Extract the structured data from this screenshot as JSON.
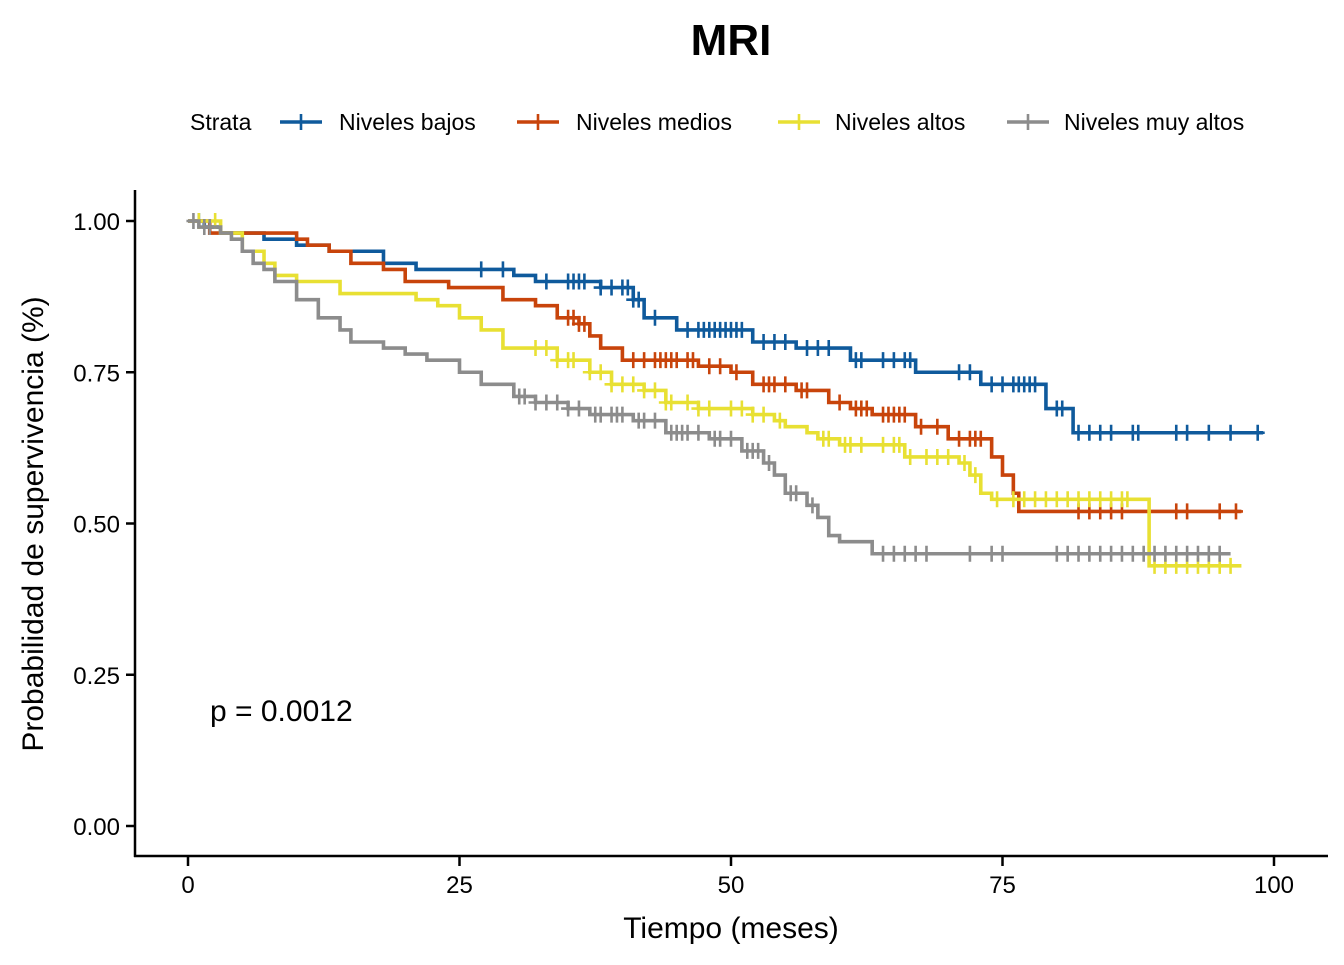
{
  "chart_data": {
    "type": "line",
    "subtype": "kaplan-meier",
    "title": "MRI",
    "xlabel": "Tiempo (meses)",
    "ylabel": "Probabilidad de supervivencia (%)",
    "xlim": [
      -5,
      105
    ],
    "ylim": [
      -0.05,
      1.05
    ],
    "x_ticks": [
      0,
      25,
      50,
      75,
      100
    ],
    "y_ticks": [
      0.0,
      0.25,
      0.5,
      0.75,
      1.0
    ],
    "x_tick_labels": [
      "0",
      "25",
      "50",
      "75",
      "100"
    ],
    "y_tick_labels": [
      "0.00",
      "0.25",
      "0.50",
      "0.75",
      "1.00"
    ],
    "grid": false,
    "legend": {
      "title": "Strata",
      "position": "top"
    },
    "annotation": "p = 0.0012",
    "series": [
      {
        "name": "Niveles bajos",
        "color": "#0F5A9C",
        "steps": [
          [
            0,
            1.0
          ],
          [
            1.5,
            0.99
          ],
          [
            3,
            0.98
          ],
          [
            7,
            0.97
          ],
          [
            10,
            0.96
          ],
          [
            13,
            0.95
          ],
          [
            18,
            0.93
          ],
          [
            21,
            0.92
          ],
          [
            30,
            0.91
          ],
          [
            32,
            0.9
          ],
          [
            38,
            0.89
          ],
          [
            41,
            0.87
          ],
          [
            42,
            0.84
          ],
          [
            45,
            0.82
          ],
          [
            52,
            0.8
          ],
          [
            56,
            0.79
          ],
          [
            61,
            0.77
          ],
          [
            67,
            0.75
          ],
          [
            73,
            0.73
          ],
          [
            79,
            0.69
          ],
          [
            81.5,
            0.65
          ],
          [
            99,
            0.65
          ]
        ],
        "censor": [
          1,
          2,
          27,
          29,
          33,
          35,
          35.5,
          36,
          36.5,
          38,
          39,
          40,
          40.5,
          41,
          41.5,
          43,
          46,
          47,
          47.5,
          48,
          48.5,
          49,
          49.5,
          50,
          50.5,
          51,
          53,
          54,
          55,
          57,
          58,
          59,
          61.5,
          62,
          64,
          65,
          66,
          66.5,
          71,
          72,
          74,
          75,
          76,
          76.5,
          77,
          77.5,
          78,
          80,
          80.5,
          82,
          83,
          84,
          85,
          87,
          87.5,
          91,
          92,
          94,
          96,
          98.5
        ]
      },
      {
        "name": "Niveles medios",
        "color": "#C8440B",
        "steps": [
          [
            0,
            1.0
          ],
          [
            2,
            0.98
          ],
          [
            10,
            0.97
          ],
          [
            11,
            0.96
          ],
          [
            13,
            0.95
          ],
          [
            15,
            0.93
          ],
          [
            18,
            0.92
          ],
          [
            20,
            0.9
          ],
          [
            24,
            0.89
          ],
          [
            29,
            0.87
          ],
          [
            32,
            0.86
          ],
          [
            34,
            0.84
          ],
          [
            36,
            0.83
          ],
          [
            37,
            0.81
          ],
          [
            38,
            0.79
          ],
          [
            40,
            0.77
          ],
          [
            47,
            0.76
          ],
          [
            50,
            0.75
          ],
          [
            52,
            0.73
          ],
          [
            56,
            0.72
          ],
          [
            59,
            0.7
          ],
          [
            61,
            0.69
          ],
          [
            63,
            0.68
          ],
          [
            67,
            0.66
          ],
          [
            70,
            0.64
          ],
          [
            74,
            0.61
          ],
          [
            75,
            0.58
          ],
          [
            76,
            0.55
          ],
          [
            76.5,
            0.52
          ],
          [
            97,
            0.52
          ]
        ],
        "censor": [
          35,
          35.5,
          36,
          36.5,
          41,
          42,
          43,
          43.5,
          44,
          44.5,
          45,
          46,
          46.5,
          48,
          49,
          50.5,
          53,
          53.5,
          54,
          55,
          56.5,
          57,
          60,
          61.5,
          62,
          62.5,
          64,
          64.5,
          65,
          65.5,
          66,
          67.5,
          69,
          71,
          72,
          72.5,
          73,
          82,
          83,
          84,
          85,
          86,
          91,
          92,
          95,
          96.5
        ]
      },
      {
        "name": "Niveles altos",
        "color": "#E8E033",
        "steps": [
          [
            0,
            1.0
          ],
          [
            3,
            0.98
          ],
          [
            5,
            0.95
          ],
          [
            7,
            0.93
          ],
          [
            8,
            0.91
          ],
          [
            10,
            0.9
          ],
          [
            14,
            0.88
          ],
          [
            21,
            0.87
          ],
          [
            23,
            0.86
          ],
          [
            25,
            0.84
          ],
          [
            27,
            0.82
          ],
          [
            29,
            0.79
          ],
          [
            34,
            0.77
          ],
          [
            37,
            0.75
          ],
          [
            39,
            0.73
          ],
          [
            42,
            0.72
          ],
          [
            44,
            0.7
          ],
          [
            47,
            0.69
          ],
          [
            52,
            0.68
          ],
          [
            54,
            0.67
          ],
          [
            55,
            0.66
          ],
          [
            57,
            0.65
          ],
          [
            58,
            0.64
          ],
          [
            60,
            0.63
          ],
          [
            66,
            0.61
          ],
          [
            71,
            0.6
          ],
          [
            72,
            0.58
          ],
          [
            73,
            0.55
          ],
          [
            74,
            0.54
          ],
          [
            88,
            0.54
          ],
          [
            88.5,
            0.43
          ],
          [
            97,
            0.43
          ]
        ],
        "censor": [
          1,
          2.5,
          32,
          33,
          34,
          35,
          35.5,
          37,
          38,
          39,
          40,
          41,
          42,
          43,
          44,
          44.5,
          46,
          47,
          48,
          50,
          51,
          52,
          53,
          54.5,
          58.5,
          59,
          60.5,
          61,
          62,
          64,
          65,
          65.5,
          66.5,
          68,
          69,
          70,
          71.5,
          72.5,
          74.5,
          76,
          77,
          78,
          79,
          80,
          81,
          82,
          83,
          84,
          85,
          86,
          86.5,
          89,
          90,
          91,
          92,
          93,
          94,
          95,
          96
        ]
      },
      {
        "name": "Niveles muy altos",
        "color": "#8C8C8C",
        "steps": [
          [
            0,
            1.0
          ],
          [
            1,
            0.99
          ],
          [
            3,
            0.98
          ],
          [
            4,
            0.97
          ],
          [
            5,
            0.95
          ],
          [
            6,
            0.93
          ],
          [
            7,
            0.92
          ],
          [
            8,
            0.9
          ],
          [
            10,
            0.87
          ],
          [
            12,
            0.84
          ],
          [
            14,
            0.82
          ],
          [
            15,
            0.8
          ],
          [
            18,
            0.79
          ],
          [
            20,
            0.78
          ],
          [
            22,
            0.77
          ],
          [
            25,
            0.75
          ],
          [
            27,
            0.73
          ],
          [
            30,
            0.71
          ],
          [
            32,
            0.7
          ],
          [
            35,
            0.69
          ],
          [
            37,
            0.68
          ],
          [
            41,
            0.67
          ],
          [
            44,
            0.65
          ],
          [
            48,
            0.64
          ],
          [
            51,
            0.62
          ],
          [
            53,
            0.6
          ],
          [
            54,
            0.58
          ],
          [
            55,
            0.55
          ],
          [
            57,
            0.53
          ],
          [
            58,
            0.51
          ],
          [
            59,
            0.48
          ],
          [
            60,
            0.47
          ],
          [
            63,
            0.45
          ],
          [
            96,
            0.45
          ]
        ],
        "censor": [
          0.5,
          1.5,
          2,
          30.5,
          31,
          32,
          33,
          34,
          35,
          36,
          37.5,
          38,
          39,
          39.5,
          40,
          41.5,
          42,
          43,
          44.5,
          45,
          45.5,
          46,
          47,
          48.5,
          49,
          50,
          51.5,
          52,
          52.5,
          53.5,
          55.5,
          56,
          57.5,
          64,
          65,
          66,
          67,
          68,
          72,
          74,
          75,
          80,
          81,
          82,
          83,
          84,
          85,
          86,
          87,
          88,
          89,
          90,
          91,
          92,
          93,
          94,
          95
        ]
      }
    ]
  }
}
